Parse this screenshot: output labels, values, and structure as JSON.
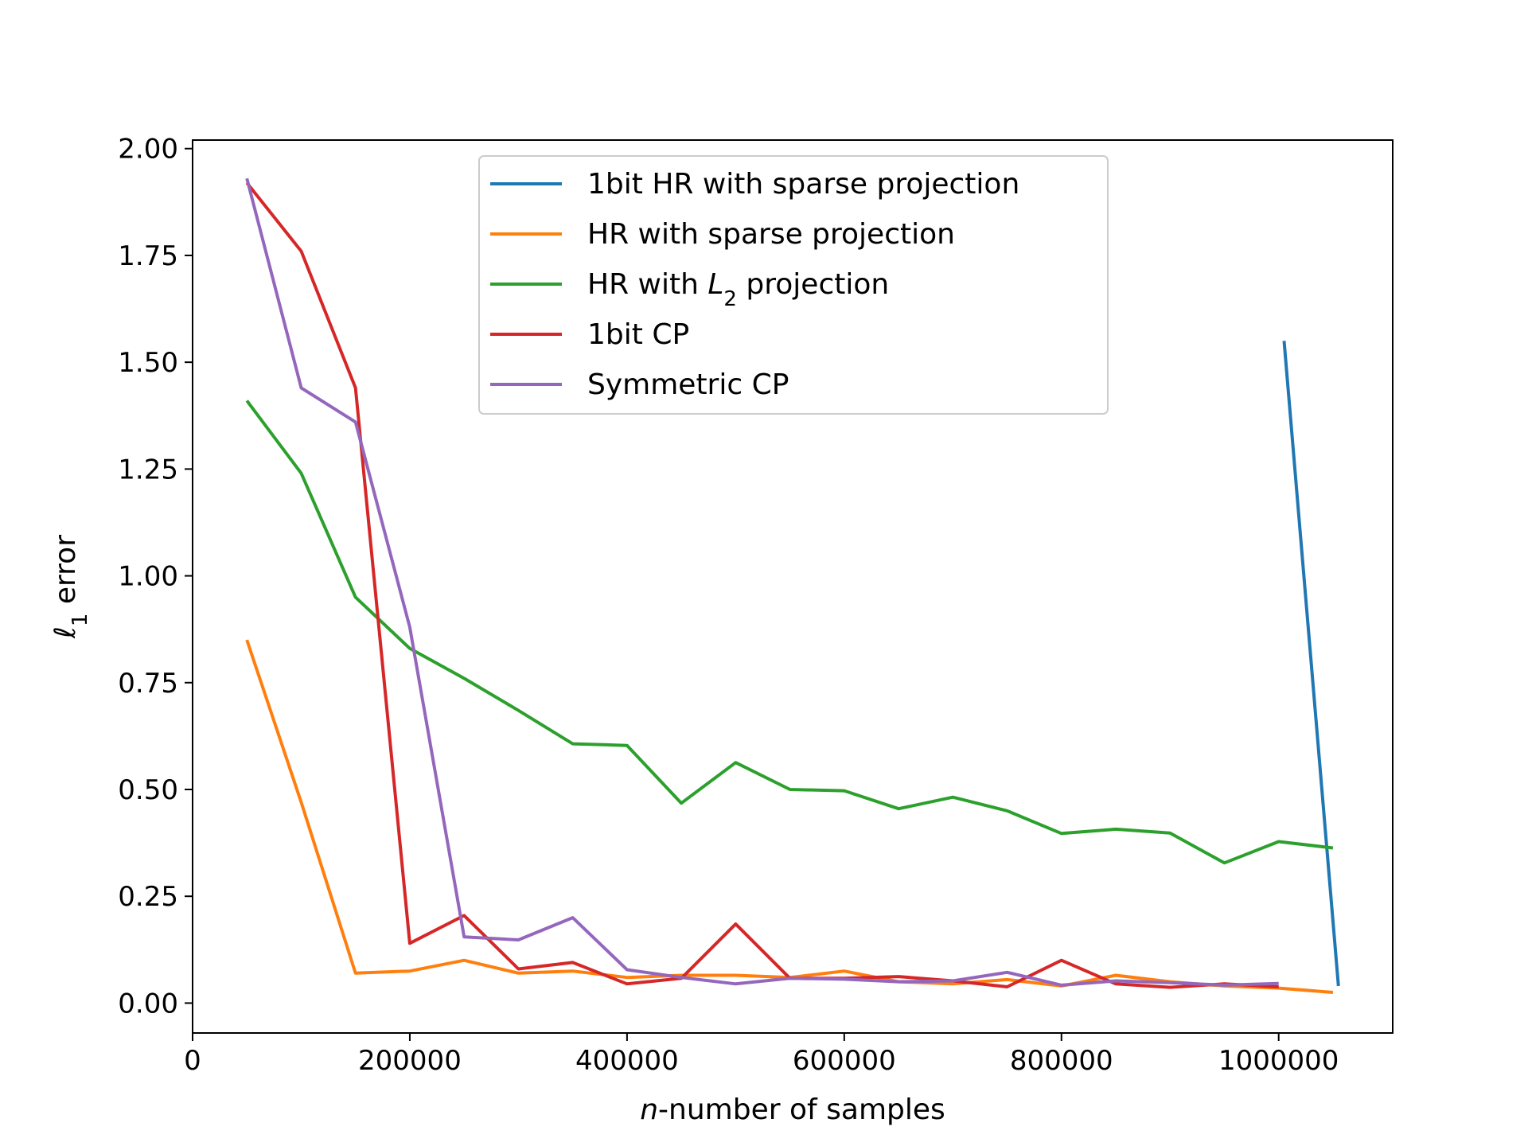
{
  "chart_data": {
    "type": "line",
    "xlabel_var": "n",
    "xlabel_rest": "-number of samples",
    "ylabel_var": "ℓ",
    "ylabel_sub": "1",
    "ylabel_rest": " error",
    "xlim": [
      0,
      1105000
    ],
    "ylim": [
      -0.07,
      2.02
    ],
    "xticks": [
      0,
      200000,
      400000,
      600000,
      800000,
      1000000
    ],
    "xtick_labels": [
      "0",
      "200000",
      "400000",
      "600000",
      "800000",
      "1000000"
    ],
    "yticks": [
      0,
      0.25,
      0.5,
      0.75,
      1.0,
      1.25,
      1.5,
      1.75,
      2.0
    ],
    "ytick_labels": [
      "0.00",
      "0.25",
      "0.50",
      "0.75",
      "1.00",
      "1.25",
      "1.50",
      "1.75",
      "2.00"
    ],
    "grid": false,
    "legend_position": "upper-center",
    "series": [
      {
        "name": "1bit HR with sparse projection",
        "color": "#1f77b4",
        "x": [
          1005000,
          1055000
        ],
        "y": [
          1.55,
          0.04
        ]
      },
      {
        "name": "HR with sparse projection",
        "color": "#ff7f0e",
        "x": [
          50000,
          100000,
          150000,
          200000,
          250000,
          300000,
          350000,
          400000,
          450000,
          500000,
          550000,
          600000,
          650000,
          700000,
          750000,
          800000,
          850000,
          900000,
          950000,
          1000000,
          1050000
        ],
        "y": [
          0.85,
          0.47,
          0.07,
          0.075,
          0.1,
          0.07,
          0.075,
          0.06,
          0.065,
          0.065,
          0.06,
          0.075,
          0.05,
          0.045,
          0.055,
          0.04,
          0.065,
          0.05,
          0.04,
          0.035,
          0.025
        ]
      },
      {
        "name": "HR with ",
        "name_var": "L",
        "name_sub": "2",
        "name_rest": " projection",
        "color": "#2ca02c",
        "x": [
          50000,
          100000,
          150000,
          200000,
          250000,
          300000,
          350000,
          400000,
          450000,
          500000,
          550000,
          600000,
          650000,
          700000,
          750000,
          800000,
          850000,
          900000,
          950000,
          1000000,
          1050000
        ],
        "y": [
          1.41,
          1.24,
          0.95,
          0.83,
          0.76,
          0.685,
          0.607,
          0.603,
          0.468,
          0.563,
          0.5,
          0.497,
          0.455,
          0.482,
          0.45,
          0.397,
          0.407,
          0.398,
          0.328,
          0.378,
          0.363
        ]
      },
      {
        "name": "1bit CP",
        "color": "#d62728",
        "x": [
          50000,
          100000,
          150000,
          200000,
          250000,
          300000,
          350000,
          400000,
          450000,
          500000,
          550000,
          600000,
          650000,
          700000,
          750000,
          800000,
          850000,
          900000,
          950000,
          1000000
        ],
        "y": [
          1.92,
          1.76,
          1.44,
          0.14,
          0.205,
          0.08,
          0.095,
          0.045,
          0.058,
          0.185,
          0.058,
          0.058,
          0.062,
          0.052,
          0.038,
          0.1,
          0.045,
          0.037,
          0.045,
          0.038
        ]
      },
      {
        "name": "Symmetric CP",
        "color": "#9467bd",
        "x": [
          50000,
          100000,
          150000,
          200000,
          250000,
          300000,
          350000,
          400000,
          450000,
          500000,
          550000,
          600000,
          650000,
          700000,
          750000,
          800000,
          850000,
          900000,
          950000,
          1000000
        ],
        "y": [
          1.93,
          1.44,
          1.36,
          0.88,
          0.155,
          0.148,
          0.2,
          0.078,
          0.06,
          0.045,
          0.058,
          0.056,
          0.05,
          0.052,
          0.072,
          0.042,
          0.052,
          0.048,
          0.042,
          0.046
        ]
      }
    ]
  }
}
